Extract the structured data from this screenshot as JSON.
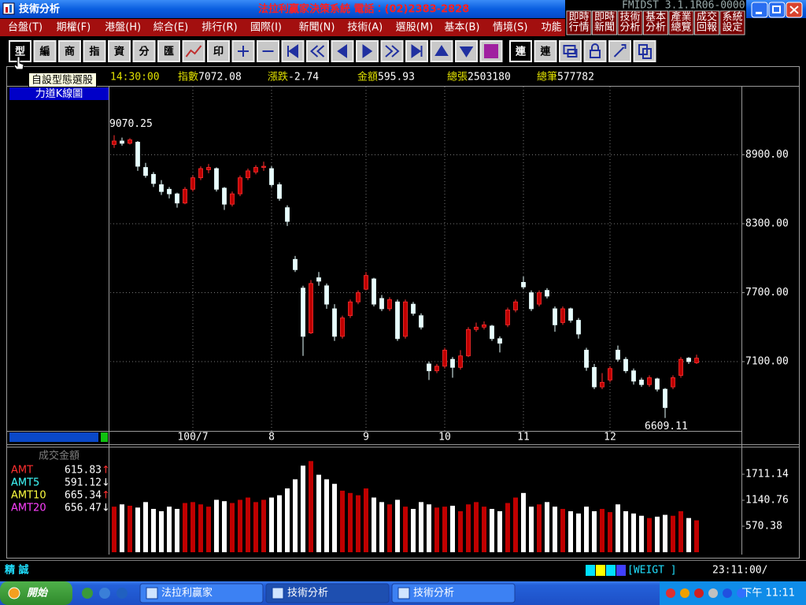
{
  "window": {
    "title": "技術分析",
    "banner": "法拉利贏家決策系統  電話：(02)2383-2828",
    "version": "FMIDST 3.1.1R06-0000",
    "quick_buttons": [
      [
        "即時",
        "行情"
      ],
      [
        "即時",
        "新聞"
      ],
      [
        "技術",
        "分析"
      ],
      [
        "基本",
        "分析"
      ],
      [
        "產業",
        "總覽"
      ],
      [
        "成交",
        "回報"
      ],
      [
        "系統",
        "設定"
      ]
    ]
  },
  "menu": [
    "台盤(T)",
    "期權(F)",
    "港盤(H)",
    "綜合(E)",
    "排行(R)",
    "國際(I)",
    "新聞(N)",
    "技術(A)",
    "選股(M)",
    "基本(B)",
    "情境(S)",
    "功能"
  ],
  "toolbar": [
    "型",
    "編",
    "商",
    "指",
    "資",
    "分",
    "匯",
    "印",
    "連",
    "連"
  ],
  "tooltip": "自設型態選股",
  "quote": {
    "time": "14:30:00",
    "items": [
      {
        "label": "指數",
        "value": 7072.08
      },
      {
        "label": "漲跌",
        "value": -2.74
      },
      {
        "label": "金額",
        "value": 595.93
      },
      {
        "label": "總張",
        "value": 2503180
      },
      {
        "label": "總筆",
        "value": 577782
      }
    ]
  },
  "chart_data": [
    {
      "type": "candlestick",
      "title": "力道K線圖",
      "categories": [
        null,
        null,
        null,
        null,
        null,
        null,
        null,
        null,
        null,
        null,
        "100/7",
        null,
        null,
        null,
        null,
        null,
        null,
        null,
        null,
        null,
        "8",
        null,
        null,
        null,
        null,
        null,
        null,
        null,
        null,
        null,
        null,
        null,
        "9",
        null,
        null,
        null,
        null,
        null,
        null,
        null,
        null,
        null,
        "10",
        null,
        null,
        null,
        null,
        null,
        null,
        null,
        null,
        null,
        "11",
        null,
        null,
        null,
        null,
        null,
        null,
        null,
        null,
        null,
        null,
        "12",
        null,
        null,
        null,
        null,
        null,
        null,
        null,
        null,
        null,
        null,
        null
      ],
      "open": [
        8990,
        9020,
        9000,
        9010,
        8790,
        8730,
        8640,
        8600,
        8560,
        8480,
        8600,
        8700,
        8770,
        8780,
        8610,
        8470,
        8560,
        8700,
        8750,
        8790,
        8780,
        8640,
        8440,
        7990,
        7740,
        7350,
        7830,
        7760,
        7560,
        7320,
        7500,
        7620,
        7730,
        7820,
        7650,
        7560,
        7620,
        7320,
        7600,
        7500,
        7080,
        7020,
        7060,
        7120,
        7050,
        7150,
        7380,
        7400,
        7410,
        7300,
        7420,
        7550,
        7790,
        7700,
        7600,
        7720,
        7560,
        7440,
        7560,
        7460,
        7200,
        7050,
        6880,
        6940,
        7200,
        7120,
        7020,
        6940,
        6900,
        6950,
        6860,
        6880,
        6980,
        7130,
        7090
      ],
      "high": [
        9070.25,
        9050,
        9045,
        9020,
        8830,
        8750,
        8680,
        8620,
        8570,
        8620,
        8720,
        8800,
        8820,
        8790,
        8620,
        8580,
        8720,
        8780,
        8810,
        8840,
        8800,
        8660,
        8460,
        8020,
        7760,
        7810,
        7880,
        7780,
        7600,
        7500,
        7640,
        7720,
        7880,
        7830,
        7680,
        7660,
        7640,
        7640,
        7620,
        7520,
        7100,
        7080,
        7220,
        7140,
        7200,
        7400,
        7440,
        7450,
        7420,
        7320,
        7570,
        7640,
        7840,
        7720,
        7720,
        7740,
        7580,
        7580,
        7570,
        7480,
        7220,
        7080,
        7000,
        7060,
        7240,
        7140,
        7040,
        6960,
        6980,
        6960,
        6870,
        6980,
        7140,
        7140,
        7160
      ],
      "low": [
        8960,
        8980,
        8990,
        8760,
        8700,
        8620,
        8550,
        8520,
        8440,
        8470,
        8580,
        8680,
        8740,
        8580,
        8420,
        8450,
        8540,
        8680,
        8730,
        8760,
        8620,
        8500,
        8280,
        7880,
        7150,
        7340,
        7760,
        7560,
        7280,
        7300,
        7480,
        7600,
        7720,
        7580,
        7540,
        7540,
        7280,
        7300,
        7500,
        7380,
        6940,
        7000,
        7040,
        6960,
        7030,
        7140,
        7360,
        7380,
        7280,
        7180,
        7400,
        7530,
        7730,
        7540,
        7580,
        7650,
        7360,
        7420,
        7440,
        7300,
        7020,
        6860,
        6860,
        6920,
        7100,
        7000,
        6900,
        6880,
        6880,
        6840,
        6609.11,
        6860,
        6960,
        7080,
        7080
      ],
      "close": [
        9020,
        9000,
        9030,
        8800,
        8720,
        8650,
        8580,
        8560,
        8480,
        8600,
        8700,
        8780,
        8790,
        8600,
        8470,
        8560,
        8700,
        8760,
        8790,
        8800,
        8640,
        8520,
        8320,
        7900,
        7320,
        7780,
        7800,
        7600,
        7320,
        7480,
        7620,
        7700,
        7850,
        7600,
        7560,
        7640,
        7300,
        7620,
        7520,
        7400,
        7020,
        7060,
        7200,
        7050,
        7150,
        7380,
        7400,
        7420,
        7300,
        7260,
        7550,
        7620,
        7750,
        7560,
        7700,
        7670,
        7420,
        7560,
        7460,
        7340,
        7050,
        6880,
        6920,
        7040,
        7120,
        7020,
        6930,
        6900,
        6960,
        6860,
        6700,
        6960,
        7120,
        7100,
        7130
      ],
      "up_color": "#c00000",
      "down_color": "#e8ffff",
      "high_label": "9070.25",
      "low_label": "6609.11",
      "ylim": [
        6497,
        9493
      ],
      "yticks": [
        {
          "value": 7100,
          "label": "7100.00"
        },
        {
          "value": 7700,
          "label": "7700.00"
        },
        {
          "value": 8300,
          "label": "8300.00"
        },
        {
          "value": 8900,
          "label": "8900.00"
        }
      ],
      "grid": true
    },
    {
      "type": "bar",
      "title": "成交金額",
      "values": [
        1000,
        1050,
        1020,
        980,
        1100,
        950,
        900,
        1000,
        950,
        1080,
        1100,
        1050,
        1000,
        1150,
        1120,
        1080,
        1150,
        1200,
        1100,
        1150,
        1200,
        1250,
        1400,
        1600,
        1900,
        2000,
        1700,
        1600,
        1500,
        1350,
        1300,
        1250,
        1400,
        1200,
        1100,
        1050,
        1150,
        1000,
        950,
        1100,
        1050,
        980,
        1000,
        1020,
        900,
        1050,
        1100,
        1000,
        950,
        900,
        1080,
        1200,
        1300,
        1000,
        1050,
        1100,
        1000,
        950,
        900,
        850,
        1000,
        900,
        950,
        880,
        1050,
        900,
        850,
        800,
        750,
        780,
        820,
        800,
        900,
        750,
        700
      ],
      "ylim": [
        0,
        2230
      ],
      "yticks": [
        {
          "value": 570.38,
          "label": "570.38"
        },
        {
          "value": 1140.76,
          "label": "1140.76"
        },
        {
          "value": 1711.14,
          "label": "1711.14"
        }
      ],
      "legend": [
        {
          "name": "AMT",
          "value": 615.83,
          "trend": "↑",
          "color": "#ff3030"
        },
        {
          "name": "AMT5",
          "value": 591.12,
          "trend": "↓",
          "color": "#40ffff"
        },
        {
          "name": "AMT10",
          "value": 665.34,
          "trend": "↑",
          "color": "#ffff40"
        },
        {
          "name": "AMT20",
          "value": 656.47,
          "trend": "↓",
          "color": "#ff40ff"
        }
      ]
    }
  ],
  "status": {
    "left": "精 誠",
    "code": "[WEIGT ]",
    "clock": "23:11:00/"
  },
  "taskbar": {
    "start": "開始",
    "tasks": [
      "法拉利贏家",
      "技術分析",
      "技術分析"
    ],
    "clock": "下午 11:11"
  }
}
